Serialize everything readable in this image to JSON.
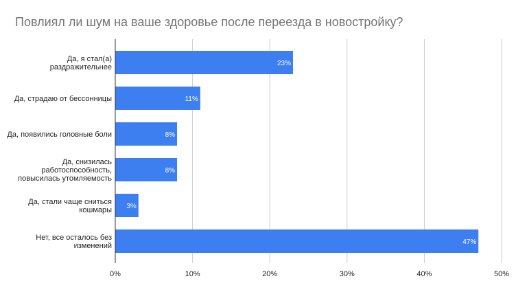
{
  "chart_data": {
    "type": "bar",
    "orientation": "horizontal",
    "title": "Повлиял ли шум на ваше здоровье после переезда в новостройку?",
    "xlabel": "",
    "ylabel": "",
    "categories": [
      [
        "Да, я стал(а)",
        "раздражительнее"
      ],
      [
        "Да, страдаю от бессонницы"
      ],
      [
        "Да, появились головные боли"
      ],
      [
        "Да, снизилась",
        "работоспособность,",
        "повысилась утомляемость"
      ],
      [
        "Да, стали чаще сниться",
        "кошмары"
      ],
      [
        "Нет, все осталось без",
        "изменений"
      ]
    ],
    "values": [
      23,
      11,
      8,
      8,
      3,
      47
    ],
    "data_labels": [
      "23%",
      "11%",
      "8%",
      "8%",
      "3%",
      "47%"
    ],
    "xlim": [
      0,
      50
    ],
    "ticks": [
      0,
      10,
      20,
      30,
      40,
      50
    ],
    "tick_labels": [
      "0%",
      "10%",
      "20%",
      "30%",
      "40%",
      "50%"
    ],
    "grid": true,
    "legend": "none",
    "colors": {
      "bar": "#3d7ff0",
      "grid": "#cccccc",
      "axis": "#333333",
      "title": "#757575"
    }
  }
}
